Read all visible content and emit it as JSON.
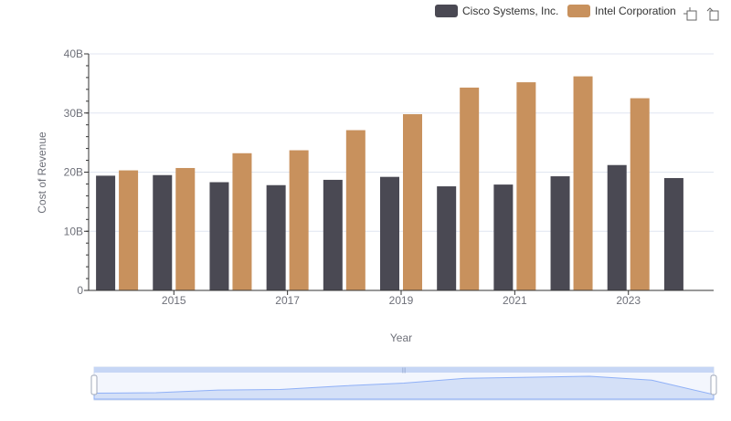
{
  "chart_data": {
    "type": "bar",
    "title": "",
    "xlabel": "Year",
    "ylabel": "Cost of Revenue",
    "categories": [
      "2014",
      "2015",
      "2016",
      "2017",
      "2018",
      "2019",
      "2020",
      "2021",
      "2022",
      "2023",
      "2024"
    ],
    "x_tick_labels": [
      "2015",
      "2017",
      "2019",
      "2021",
      "2023"
    ],
    "y_tick_labels": [
      "0",
      "10B",
      "20B",
      "30B",
      "40B"
    ],
    "ylim": [
      0,
      40
    ],
    "y_unit": "B",
    "grid": true,
    "legend_position": "top-right",
    "series": [
      {
        "name": "Cisco Systems, Inc.",
        "color": "#4a4953",
        "values": [
          19.4,
          19.5,
          18.3,
          17.8,
          18.7,
          19.2,
          17.6,
          17.9,
          19.3,
          21.2,
          19.0
        ]
      },
      {
        "name": "Intel Corporation",
        "color": "#c8915d",
        "values": [
          20.3,
          20.7,
          23.2,
          23.7,
          27.1,
          29.8,
          34.3,
          35.2,
          36.2,
          32.5,
          null
        ]
      }
    ]
  },
  "toolbox": {
    "zoom_icon": "zoom-icon",
    "restore_icon": "restore-icon"
  },
  "datazoom": {
    "start_percent": 0,
    "end_percent": 100,
    "fill_color": "#d4e0f7",
    "line_color": "#8fb0f7"
  }
}
